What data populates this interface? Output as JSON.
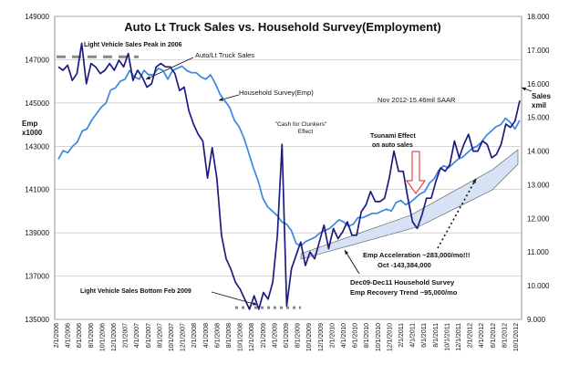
{
  "chart_data": {
    "type": "line",
    "title": "Auto Lt Truck Sales vs. Household Survey(Employment)",
    "y_left_label": [
      "Emp",
      "x1000"
    ],
    "y_right_label": [
      "Sales",
      "xmil"
    ],
    "y_left_lim": [
      135000,
      149000
    ],
    "y_right_lim": [
      9.0,
      18.0
    ],
    "y_left_ticks": [
      "135000",
      "137000",
      "139000",
      "141000",
      "143000",
      "145000",
      "147000",
      "149000"
    ],
    "y_right_ticks": [
      "9.000",
      "10.000",
      "11.000",
      "12.000",
      "13.000",
      "14.000",
      "15.000",
      "16.000",
      "17.000",
      "18.000"
    ],
    "x_tick_labels": [
      "2/1/2006",
      "4/1/2006",
      "6/1/2006",
      "8/1/2006",
      "10/1/2006",
      "12/1/2006",
      "2/1/2007",
      "4/1/2007",
      "6/1/2007",
      "8/1/2007",
      "10/1/2007",
      "12/1/2007",
      "2/1/2008",
      "4/1/2008",
      "6/1/2008",
      "8/1/2008",
      "10/1/2008",
      "12/1/2008",
      "2/1/2009",
      "4/1/2009",
      "6/1/2009",
      "8/1/2009",
      "10/1/2009",
      "12/1/2009",
      "2/1/2010",
      "4/1/2010",
      "6/1/2010",
      "8/1/2010",
      "10/1/2010",
      "12/1/2010",
      "2/1/2011",
      "4/1/2011",
      "6/1/2011",
      "8/1/2011",
      "10/1/2011",
      "12/1/2011",
      "2/1/2012",
      "4/1/2012",
      "6/1/2012",
      "8/1/2012",
      "10/1/2012"
    ],
    "grid": true,
    "series": [
      {
        "name": "Auto/Lt Truck Sales",
        "axis": "right",
        "color": "#1c1c80",
        "values": [
          16.5,
          16.4,
          16.55,
          16.1,
          16.3,
          17.2,
          16.0,
          16.6,
          16.5,
          16.3,
          16.4,
          16.6,
          16.4,
          16.7,
          16.5,
          16.9,
          16.1,
          16.4,
          16.2,
          15.9,
          16.0,
          16.5,
          16.6,
          16.5,
          16.5,
          16.3,
          15.8,
          15.9,
          15.2,
          14.8,
          14.5,
          14.3,
          13.2,
          14.1,
          13.2,
          11.5,
          10.8,
          10.5,
          10.1,
          9.9,
          9.6,
          9.3,
          9.7,
          9.3,
          9.8,
          9.6,
          10.1,
          11.5,
          14.2,
          9.4,
          10.5,
          10.9,
          11.3,
          10.6,
          11.0,
          10.8,
          11.3,
          11.8,
          11.1,
          11.7,
          11.4,
          11.6,
          11.9,
          11.5,
          11.5,
          12.2,
          12.4,
          12.8,
          12.5,
          12.5,
          12.6,
          13.2,
          14.0,
          13.4,
          13.4,
          12.6,
          11.9,
          11.7,
          12.1,
          12.6,
          12.6,
          13.1,
          13.5,
          13.4,
          13.6,
          14.3,
          13.8,
          14.2,
          14.5,
          14.0,
          14.0,
          14.3,
          14.2,
          13.8,
          13.9,
          14.2,
          14.8,
          14.7,
          14.9,
          15.5
        ]
      },
      {
        "name": "Household Survey(Emp)",
        "axis": "left",
        "color": "#3a86e0",
        "values": [
          142400,
          142800,
          142700,
          143000,
          143200,
          143700,
          143800,
          144200,
          144500,
          144800,
          145000,
          145600,
          145700,
          146000,
          146100,
          146500,
          146200,
          146100,
          146500,
          146300,
          146300,
          146600,
          146500,
          146100,
          146500,
          146600,
          146700,
          146500,
          146400,
          146400,
          146200,
          146100,
          146300,
          145900,
          145400,
          145100,
          144800,
          144200,
          143900,
          143400,
          142700,
          142000,
          141400,
          140600,
          140200,
          140000,
          139800,
          139500,
          139400,
          139100,
          138500,
          138400,
          138600,
          138700,
          138800,
          139000,
          139100,
          139200,
          139400,
          139600,
          139500,
          139300,
          139400,
          139700,
          139700,
          139800,
          139900,
          139900,
          140000,
          140100,
          140000,
          140400,
          140500,
          140300,
          140400,
          140600,
          140800,
          140900,
          141300,
          141500,
          141900,
          142100,
          142000,
          142200,
          142400,
          142500,
          142700,
          142900,
          143000,
          143200,
          143500,
          143700,
          143900,
          144000,
          144300,
          144100,
          143800,
          144200
        ]
      }
    ],
    "annotations": [
      "Light Vehicle Sales Peak in 2006",
      "Auto/Lt Truck Sales",
      "Household Survey(Emp)",
      "\"Cash for Clunkers\"",
      "Effect",
      "Nov  2012-15.46mil SAAR",
      "Tsunami Effect",
      "on auto sales",
      "Emp Acceleration ~283,000/mo!!!",
      "Oct -143,384,000",
      "Dec09-Dec11 Household Survey",
      "Emp Recovery Trend ~95,000/mo",
      "Light Vehicle Sales Bottom Feb 2009"
    ]
  },
  "colors": {
    "grid": "#bdbdbd",
    "arrow_red": "#e02020",
    "band_fill": "#d7e3f5"
  }
}
